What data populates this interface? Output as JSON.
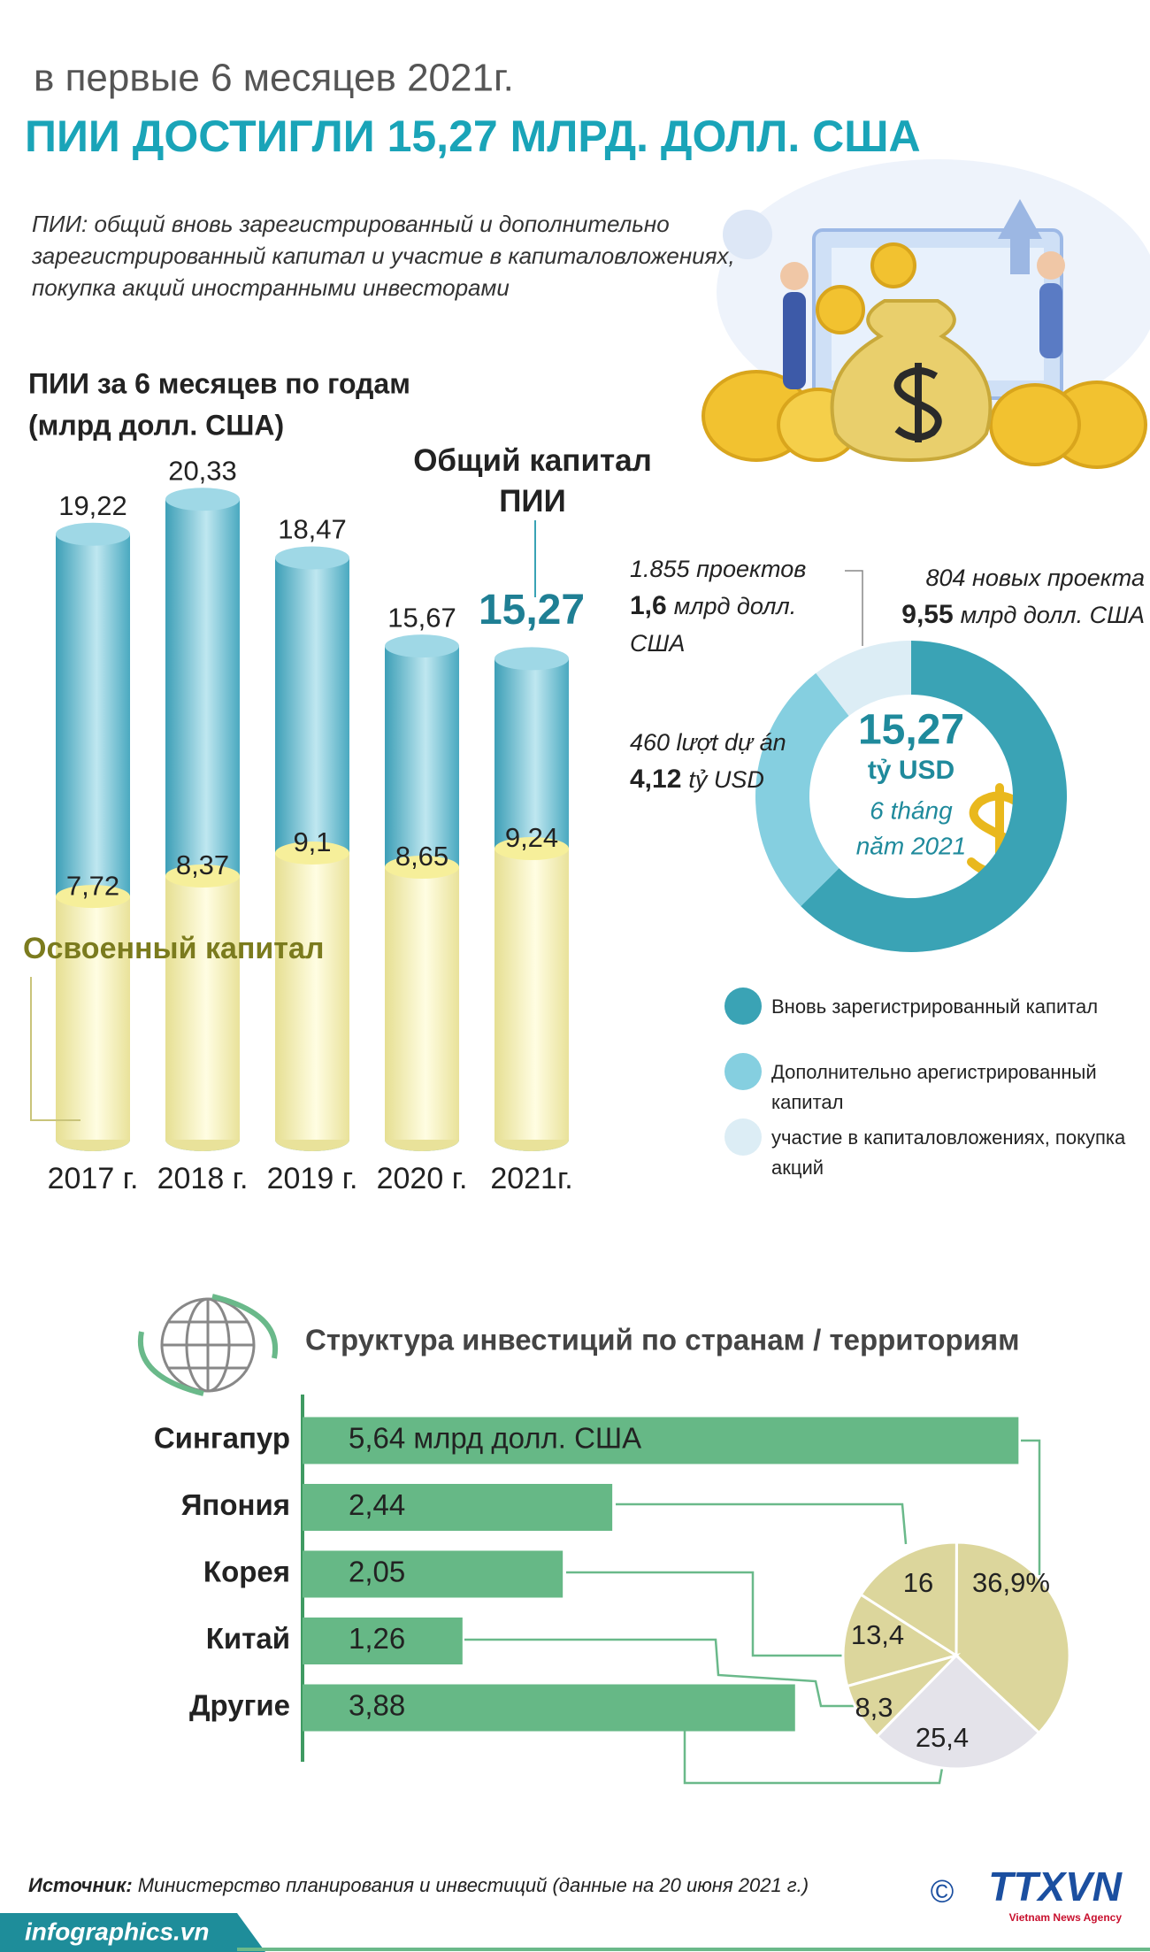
{
  "header": {
    "subtitle": "в первые 6 месяцев 2021г.",
    "title": "ПИИ ДОСТИГЛИ 15,27 МЛРД. ДОЛЛ. США",
    "definition": "ПИИ: общий вновь зарегистрированный и дополнительно зарегистрированный капитал и участие в капиталовложениях, покупка акций иностранными инвесторами"
  },
  "chart_data": [
    {
      "type": "bar",
      "title": "ПИИ за 6 месяцев по годам",
      "subtitle": "(млрд долл. США)",
      "categories": [
        "2017 г.",
        "2018 г.",
        "2019 г.",
        "2020 г.",
        "2021г."
      ],
      "series": [
        {
          "name": "Общий капитал ПИИ",
          "color": "#4aa9c0",
          "values": [
            19.22,
            20.33,
            18.47,
            15.67,
            15.27
          ],
          "value_labels": [
            "19,22",
            "20,33",
            "18,47",
            "15,67",
            "15,27"
          ]
        },
        {
          "name": "Освоенный капитал",
          "color": "#f3ec9c",
          "values": [
            7.72,
            8.37,
            9.1,
            8.65,
            9.24
          ],
          "value_labels": [
            "7,72",
            "8,37",
            "9,1",
            "8,65",
            "9,24"
          ]
        }
      ]
    },
    {
      "type": "donut",
      "labels": [
        "Вновь зарегистрированный капитал",
        "Дополнительно арегистрированный капитал",
        "участие в капиталовложениях, покупка акций"
      ],
      "values": [
        9.55,
        4.12,
        1.6
      ],
      "value_labels": [
        "9,55",
        "4,12",
        "1,6"
      ],
      "colors": [
        "#3aa3b5",
        "#85cfe0",
        "#dcedf5"
      ],
      "annotations": [
        "804 новых проекта",
        "460 lượt dự án",
        "1.855 проектов"
      ],
      "units": [
        "млрд долл. США",
        "tỷ USD",
        "млрд долл. США"
      ],
      "center_text": [
        "15,27",
        "tỷ USD",
        "6 tháng",
        "năm 2021"
      ]
    },
    {
      "type": "barh",
      "title": "Структура инвестиций по странам / территориям",
      "categories": [
        "Сингапур",
        "Япония",
        "Корея",
        "Китай",
        "Другие"
      ],
      "values": [
        5.64,
        2.44,
        2.05,
        1.26,
        3.88
      ],
      "value_labels": [
        "5,64 млрд долл. США",
        "2,44",
        "2,05",
        "1,26",
        "3,88"
      ],
      "color": "#66b886"
    },
    {
      "type": "pie",
      "values": [
        36.9,
        16,
        13.4,
        8.3,
        25.4
      ],
      "value_labels": [
        "36,9%",
        "16",
        "13,4",
        "8,3",
        "25,4"
      ],
      "colors": [
        "#dcd69c",
        "#dcd69c",
        "#dcd69c",
        "#dcd69c",
        "#e4e3ea"
      ]
    }
  ],
  "footer": {
    "source_label": "Источник:",
    "source": "Министерство планирования и инвестиций (данные на 20 июня 2021 г.)",
    "site": "infographics.vn",
    "copyright": "©",
    "logo": "TTXVN",
    "agency": "Vietnam News Agency"
  }
}
